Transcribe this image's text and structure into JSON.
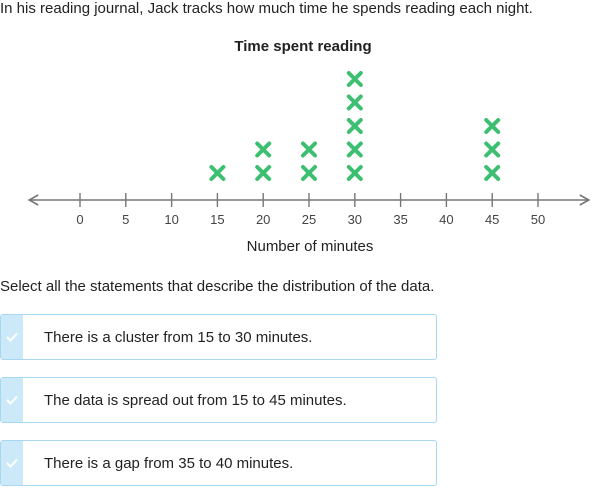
{
  "question": {
    "intro": "In his reading journal, Jack tracks how much time he spends reading each night.",
    "instruction": "Select all the statements that describe the distribution of the data."
  },
  "chart_data": {
    "type": "scatter",
    "subtype": "dot-plot",
    "title": "Time spent reading",
    "xlabel": "Number of minutes",
    "ticks": [
      0,
      5,
      10,
      15,
      20,
      25,
      30,
      35,
      40,
      45,
      50
    ],
    "xlim": [
      -5,
      55
    ],
    "marker": "x",
    "points": [
      {
        "x": 15,
        "count": 1
      },
      {
        "x": 20,
        "count": 2
      },
      {
        "x": 25,
        "count": 2
      },
      {
        "x": 30,
        "count": 5
      },
      {
        "x": 45,
        "count": 3
      }
    ],
    "colors": {
      "marker": "#3dbf72",
      "axis": "#777777"
    }
  },
  "options": [
    {
      "label": "There is a cluster from 15 to 30 minutes."
    },
    {
      "label": "The data is spread out from 15 to 45 minutes."
    },
    {
      "label": "There is a gap from 35 to 40 minutes."
    }
  ],
  "colors": {
    "option_border": "#a8d8f0",
    "check_bg": "#cbe9f8",
    "check_mark": "#ffffff"
  },
  "icons": {
    "option_check": "checkmark-icon"
  }
}
